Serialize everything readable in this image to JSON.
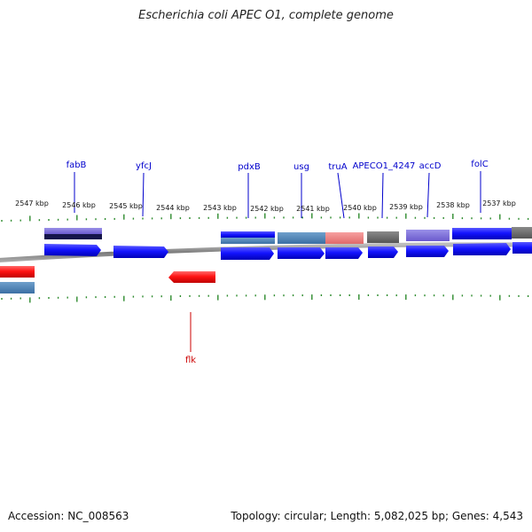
{
  "title": "Escherichia coli APEC O1, complete genome",
  "footer": {
    "accession": "Accession: NC_008563",
    "summary": "Topology: circular; Length: 5,082,025 bp; Genes: 4,543"
  },
  "ruler_labels": [
    "2547 kbp",
    "2546 kbp",
    "2545 kbp",
    "2544 kbp",
    "2543 kbp",
    "2542 kbp",
    "2541 kbp",
    "2540 kbp",
    "2539 kbp",
    "2538 kbp",
    "2537 kbp"
  ],
  "genes": [
    {
      "name": "fabB",
      "strand": "forward",
      "color": "#1a1aff"
    },
    {
      "name": "yfcJ",
      "strand": "forward",
      "color": "#1a1aff"
    },
    {
      "name": "pdxB",
      "strand": "forward",
      "color": "#1a1aff"
    },
    {
      "name": "usg",
      "strand": "forward",
      "color": "#1a1aff"
    },
    {
      "name": "truA",
      "strand": "forward",
      "color": "#1a1aff"
    },
    {
      "name": "APECO1_4247",
      "strand": "forward",
      "color": "#1a1aff"
    },
    {
      "name": "accD",
      "strand": "forward",
      "color": "#1a1aff"
    },
    {
      "name": "folC",
      "strand": "forward",
      "color": "#1a1aff"
    },
    {
      "name": "flk",
      "strand": "reverse",
      "color": "#ff1a1a"
    }
  ],
  "colors": {
    "forward_gene": "#1a1aff",
    "reverse_gene": "#ff1a1a",
    "backbone": "#888888",
    "ruler_tick": "#2e8b2e",
    "label_forward": "#0000cc",
    "label_reverse": "#cc0000"
  }
}
